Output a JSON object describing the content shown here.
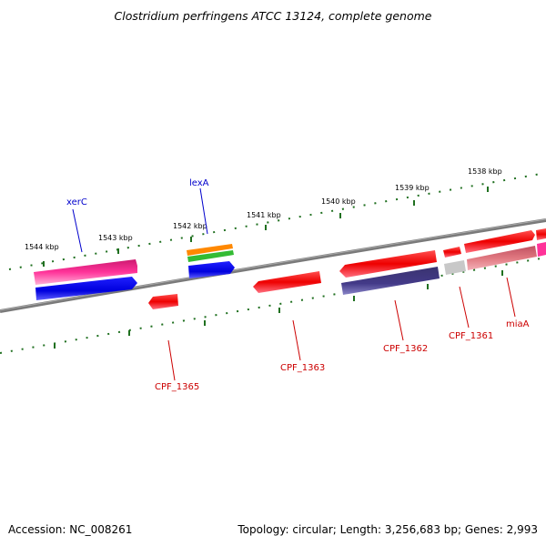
{
  "title": "Clostridium perfringens ATCC 13124, complete genome",
  "footer": {
    "accession": "Accession: NC_008261",
    "summary": "Topology: circular; Length: 3,256,683 bp; Genes: 2,993"
  },
  "kbp_ticks": [
    "1544 kbp",
    "1543 kbp",
    "1542 kbp",
    "1541 kbp",
    "1540 kbp",
    "1539 kbp",
    "1538 kbp"
  ],
  "gene_labels": {
    "xerC": "xerC",
    "lexA": "lexA",
    "CPF_1365": "CPF_1365",
    "CPF_1363": "CPF_1363",
    "CPF_1362": "CPF_1362",
    "CPF_1361": "CPF_1361",
    "miaA": "miaA"
  },
  "colors": {
    "backbone": "#808080",
    "tick": "#207020",
    "forward_label": "#0000cc",
    "reverse_label": "#cc0000",
    "red": "#ff0000",
    "magenta": "#ff3399",
    "blue": "#0000ee",
    "orange": "#ff8800",
    "green": "#33bb33",
    "slate": "#403a80",
    "pink_grey": "#e07880",
    "light_grey": "#c0c0c0"
  }
}
